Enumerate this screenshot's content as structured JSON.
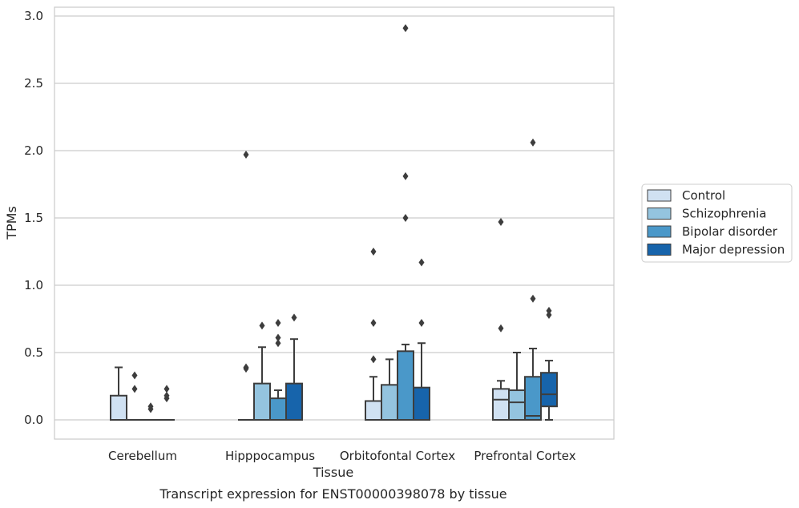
{
  "caption": "Transcript expression for ENST00000398078 by tissue",
  "chart_data": {
    "type": "box",
    "title": "",
    "xlabel": "Tissue",
    "ylabel": "TPMs",
    "ylim": [
      -0.14,
      3.06
    ],
    "yticks": [
      0.0,
      0.5,
      1.0,
      1.5,
      2.0,
      2.5,
      3.0
    ],
    "ytick_labels": [
      "0.0",
      "0.5",
      "1.0",
      "1.5",
      "2.0",
      "2.5",
      "3.0"
    ],
    "grid": "horizontal",
    "legend_position": "right",
    "categories": [
      "Cerebellum",
      "Hipppocampus",
      "Orbitofontal Cortex",
      "Prefrontal Cortex"
    ],
    "series": [
      {
        "name": "Control",
        "color": "#d0e1f2",
        "boxes": [
          {
            "q1": 0.0,
            "median": 0.0,
            "q3": 0.18,
            "whisker_low": 0.0,
            "whisker_high": 0.39,
            "outliers": []
          },
          {
            "q1": 0.0,
            "median": 0.0,
            "q3": 0.0,
            "whisker_low": 0.0,
            "whisker_high": 0.0,
            "outliers": [
              0.38,
              0.39,
              1.97
            ]
          },
          {
            "q1": 0.0,
            "median": 0.0,
            "q3": 0.14,
            "whisker_low": 0.0,
            "whisker_high": 0.32,
            "outliers": [
              0.45,
              0.72,
              1.25
            ]
          },
          {
            "q1": 0.0,
            "median": 0.15,
            "q3": 0.23,
            "whisker_low": 0.0,
            "whisker_high": 0.29,
            "outliers": [
              0.68,
              1.47
            ]
          }
        ]
      },
      {
        "name": "Schizophrenia",
        "color": "#94c4df",
        "boxes": [
          {
            "q1": 0.0,
            "median": 0.0,
            "q3": 0.0,
            "whisker_low": 0.0,
            "whisker_high": 0.0,
            "outliers": [
              0.23,
              0.33
            ]
          },
          {
            "q1": 0.0,
            "median": 0.0,
            "q3": 0.27,
            "whisker_low": 0.0,
            "whisker_high": 0.54,
            "outliers": [
              0.7
            ]
          },
          {
            "q1": 0.0,
            "median": 0.0,
            "q3": 0.26,
            "whisker_low": 0.0,
            "whisker_high": 0.45,
            "outliers": []
          },
          {
            "q1": 0.0,
            "median": 0.13,
            "q3": 0.22,
            "whisker_low": 0.0,
            "whisker_high": 0.5,
            "outliers": []
          }
        ]
      },
      {
        "name": "Bipolar disorder",
        "color": "#4a98c9",
        "boxes": [
          {
            "q1": 0.0,
            "median": 0.0,
            "q3": 0.0,
            "whisker_low": 0.0,
            "whisker_high": 0.0,
            "outliers": [
              0.08,
              0.1
            ]
          },
          {
            "q1": 0.0,
            "median": 0.0,
            "q3": 0.16,
            "whisker_low": 0.0,
            "whisker_high": 0.22,
            "outliers": [
              0.57,
              0.61,
              0.72
            ]
          },
          {
            "q1": 0.0,
            "median": 0.0,
            "q3": 0.51,
            "whisker_low": 0.0,
            "whisker_high": 0.56,
            "outliers": [
              1.5,
              1.81,
              2.91
            ]
          },
          {
            "q1": 0.0,
            "median": 0.03,
            "q3": 0.32,
            "whisker_low": 0.0,
            "whisker_high": 0.53,
            "outliers": [
              0.9,
              2.06
            ]
          }
        ]
      },
      {
        "name": "Major depression",
        "color": "#1764ab",
        "boxes": [
          {
            "q1": 0.0,
            "median": 0.0,
            "q3": 0.0,
            "whisker_low": 0.0,
            "whisker_high": 0.0,
            "outliers": [
              0.16,
              0.18,
              0.23
            ]
          },
          {
            "q1": 0.0,
            "median": 0.0,
            "q3": 0.27,
            "whisker_low": 0.0,
            "whisker_high": 0.6,
            "outliers": [
              0.76
            ]
          },
          {
            "q1": 0.0,
            "median": 0.0,
            "q3": 0.24,
            "whisker_low": 0.0,
            "whisker_high": 0.57,
            "outliers": [
              0.72,
              1.17
            ]
          },
          {
            "q1": 0.1,
            "median": 0.19,
            "q3": 0.35,
            "whisker_low": 0.0,
            "whisker_high": 0.44,
            "outliers": [
              0.78,
              0.81
            ]
          }
        ]
      }
    ]
  }
}
